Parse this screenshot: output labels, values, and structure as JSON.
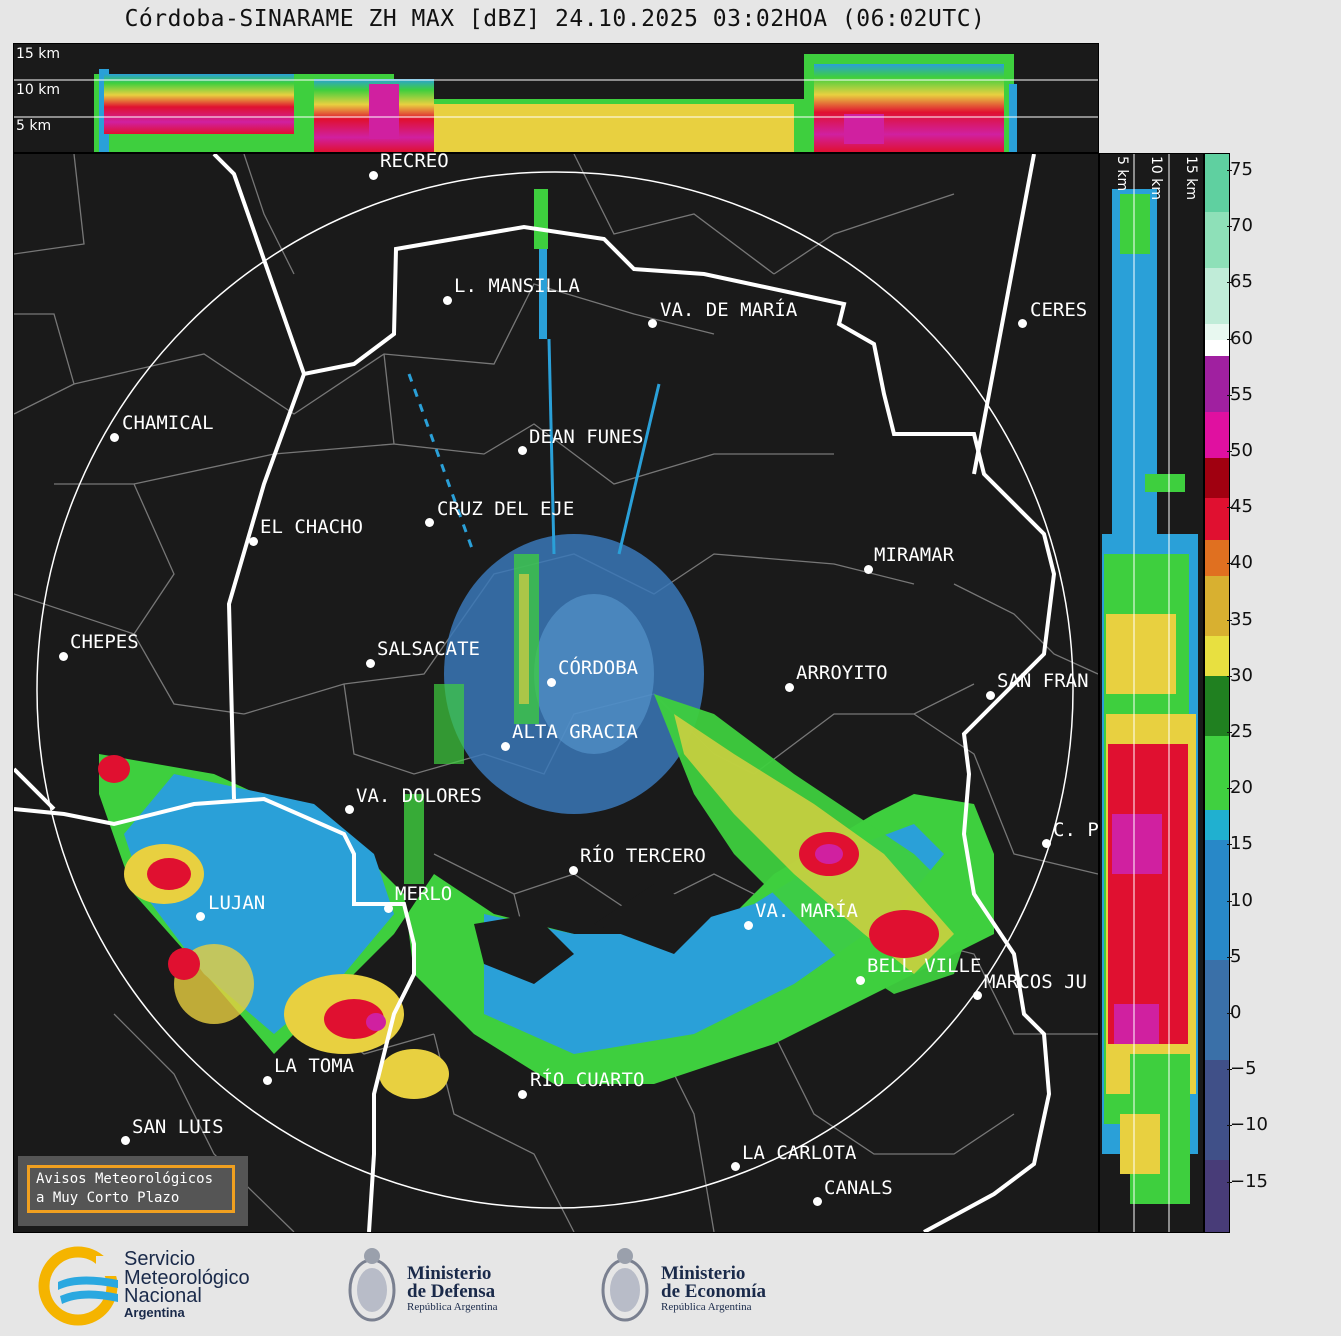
{
  "title": "Córdoba-SINARAME ZH MAX [dBZ] 24.10.2025 03:02HOA (06:02UTC)",
  "top_profile": {
    "labels": [
      "15 km",
      "10 km",
      "5 km"
    ]
  },
  "side_profile": {
    "labels": [
      "5 km",
      "10 km",
      "15 km"
    ]
  },
  "cities": [
    {
      "name": "RECREO"
    },
    {
      "name": "L. MANSILLA"
    },
    {
      "name": "VA. DE MARÍA"
    },
    {
      "name": "CERES"
    },
    {
      "name": "CHAMICAL"
    },
    {
      "name": "DEAN FUNES"
    },
    {
      "name": "CRUZ DEL EJE"
    },
    {
      "name": "EL CHACHO"
    },
    {
      "name": "MIRAMAR"
    },
    {
      "name": "CHEPES"
    },
    {
      "name": "SALSACATE"
    },
    {
      "name": "CÓRDOBA"
    },
    {
      "name": "ARROYITO"
    },
    {
      "name": "SAN FRAN"
    },
    {
      "name": "ALTA GRACIA"
    },
    {
      "name": "VA. DOLORES"
    },
    {
      "name": "C. P"
    },
    {
      "name": "RÍO TERCERO"
    },
    {
      "name": "MERLO"
    },
    {
      "name": "LUJAN"
    },
    {
      "name": "VA. MARÍA"
    },
    {
      "name": "BELL VILLE"
    },
    {
      "name": "MARCOS JU"
    },
    {
      "name": "LA TOMA"
    },
    {
      "name": "RÍO CUARTO"
    },
    {
      "name": "SAN LUIS"
    },
    {
      "name": "LA CARLOTA"
    },
    {
      "name": "CANALS"
    }
  ],
  "colorbar": {
    "unit": "dBZ",
    "ticks": [
      "75",
      "70",
      "65",
      "60",
      "55",
      "50",
      "45",
      "40",
      "35",
      "30",
      "25",
      "20",
      "15",
      "10",
      "5",
      "0",
      "−5",
      "−10",
      "−15"
    ]
  },
  "alert_box": {
    "line1": "Avisos Meteorológicos",
    "line2": "a Muy Corto Plazo"
  },
  "footer": {
    "smn": {
      "line1": "Servicio",
      "line2": "Meteorológico",
      "line3": "Nacional",
      "line4": "Argentina"
    },
    "defensa": {
      "line1": "Ministerio",
      "line2": "de Defensa",
      "line3": "República Argentina"
    },
    "economia": {
      "line1": "Ministerio",
      "line2": "de Economía",
      "line3": "República Argentina"
    }
  },
  "colors": {
    "background": "#1a1a1a",
    "border": "#ffffff",
    "accent_orange": "#f0a020"
  }
}
